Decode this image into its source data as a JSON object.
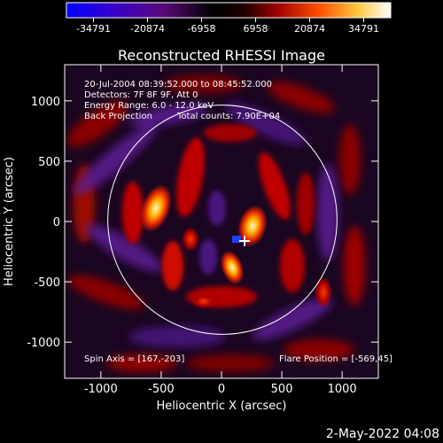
{
  "colorbar": {
    "ticks": [
      "-34791",
      "-20874",
      "-6958",
      "6958",
      "20874",
      "34791"
    ],
    "colors": [
      "#0000ff",
      "#3a00c8",
      "#5a0a78",
      "#000000",
      "#8a0000",
      "#e01a00",
      "#ff8a00",
      "#ffe080",
      "#ffffff"
    ]
  },
  "title": "Reconstructed RHESSI Image",
  "annotations": {
    "line1": "20-Jul-2004 08:39:52.000 to 08:45:52.000",
    "line2": "Detectors: 7F 8F 9F, Att 0",
    "line3": "Energy Range: 6.0 - 12.0 keV",
    "line4a": "Back Projection",
    "line4b": "Total counts: 7.90E+04"
  },
  "footer_left": "Spin Axis = [167,-203]",
  "footer_right": "Flare Position = [-569,45]",
  "x_axis": {
    "label": "Heliocentric X (arcsec)",
    "ticks": [
      "-1000",
      "-500",
      "0",
      "500",
      "1000"
    ],
    "range": [
      -1300,
      1300
    ]
  },
  "y_axis": {
    "label": "Heliocentric Y (arcsec)",
    "ticks": [
      "1000",
      "500",
      "0",
      "-500",
      "-1000"
    ],
    "range": [
      -1300,
      1300
    ]
  },
  "solar_limb_radius_arcsec": 950,
  "timestamp": "2-May-2022 04:08"
}
